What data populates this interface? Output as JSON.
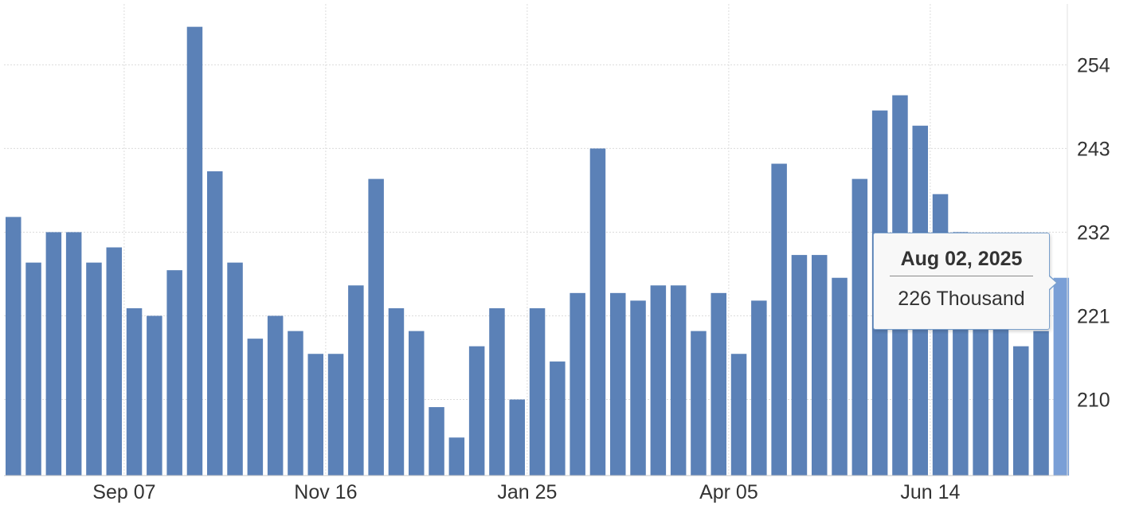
{
  "chart_data": {
    "type": "bar",
    "series": [
      {
        "values": [
          234,
          228,
          232,
          232,
          228,
          230,
          222,
          221,
          227,
          259,
          240,
          228,
          218,
          221,
          219,
          216,
          216,
          225,
          239,
          222,
          219,
          209,
          205,
          217,
          222,
          210,
          222,
          215,
          224,
          243,
          224,
          223,
          225,
          225,
          219,
          224,
          216,
          223,
          241,
          229,
          229,
          226,
          239,
          248,
          250,
          246,
          237,
          232,
          228,
          224,
          217,
          219,
          226
        ],
        "color": "#5b81b7"
      }
    ],
    "highlight_index": 52,
    "highlight_color": "#7a9fd6",
    "x_ticks": [
      {
        "label": "Sep 07",
        "index": 5.5
      },
      {
        "label": "Nov 16",
        "index": 15.5
      },
      {
        "label": "Jan 25",
        "index": 25.5
      },
      {
        "label": "Apr 05",
        "index": 35.5
      },
      {
        "label": "Jun 14",
        "index": 45.5
      }
    ],
    "y_ticks": [
      210,
      221,
      232,
      243,
      254
    ],
    "ylim": [
      200,
      262
    ],
    "grid": true,
    "y_axis_position": "right"
  },
  "tooltip": {
    "date": "Aug 02, 2025",
    "value": "226 Thousand"
  }
}
